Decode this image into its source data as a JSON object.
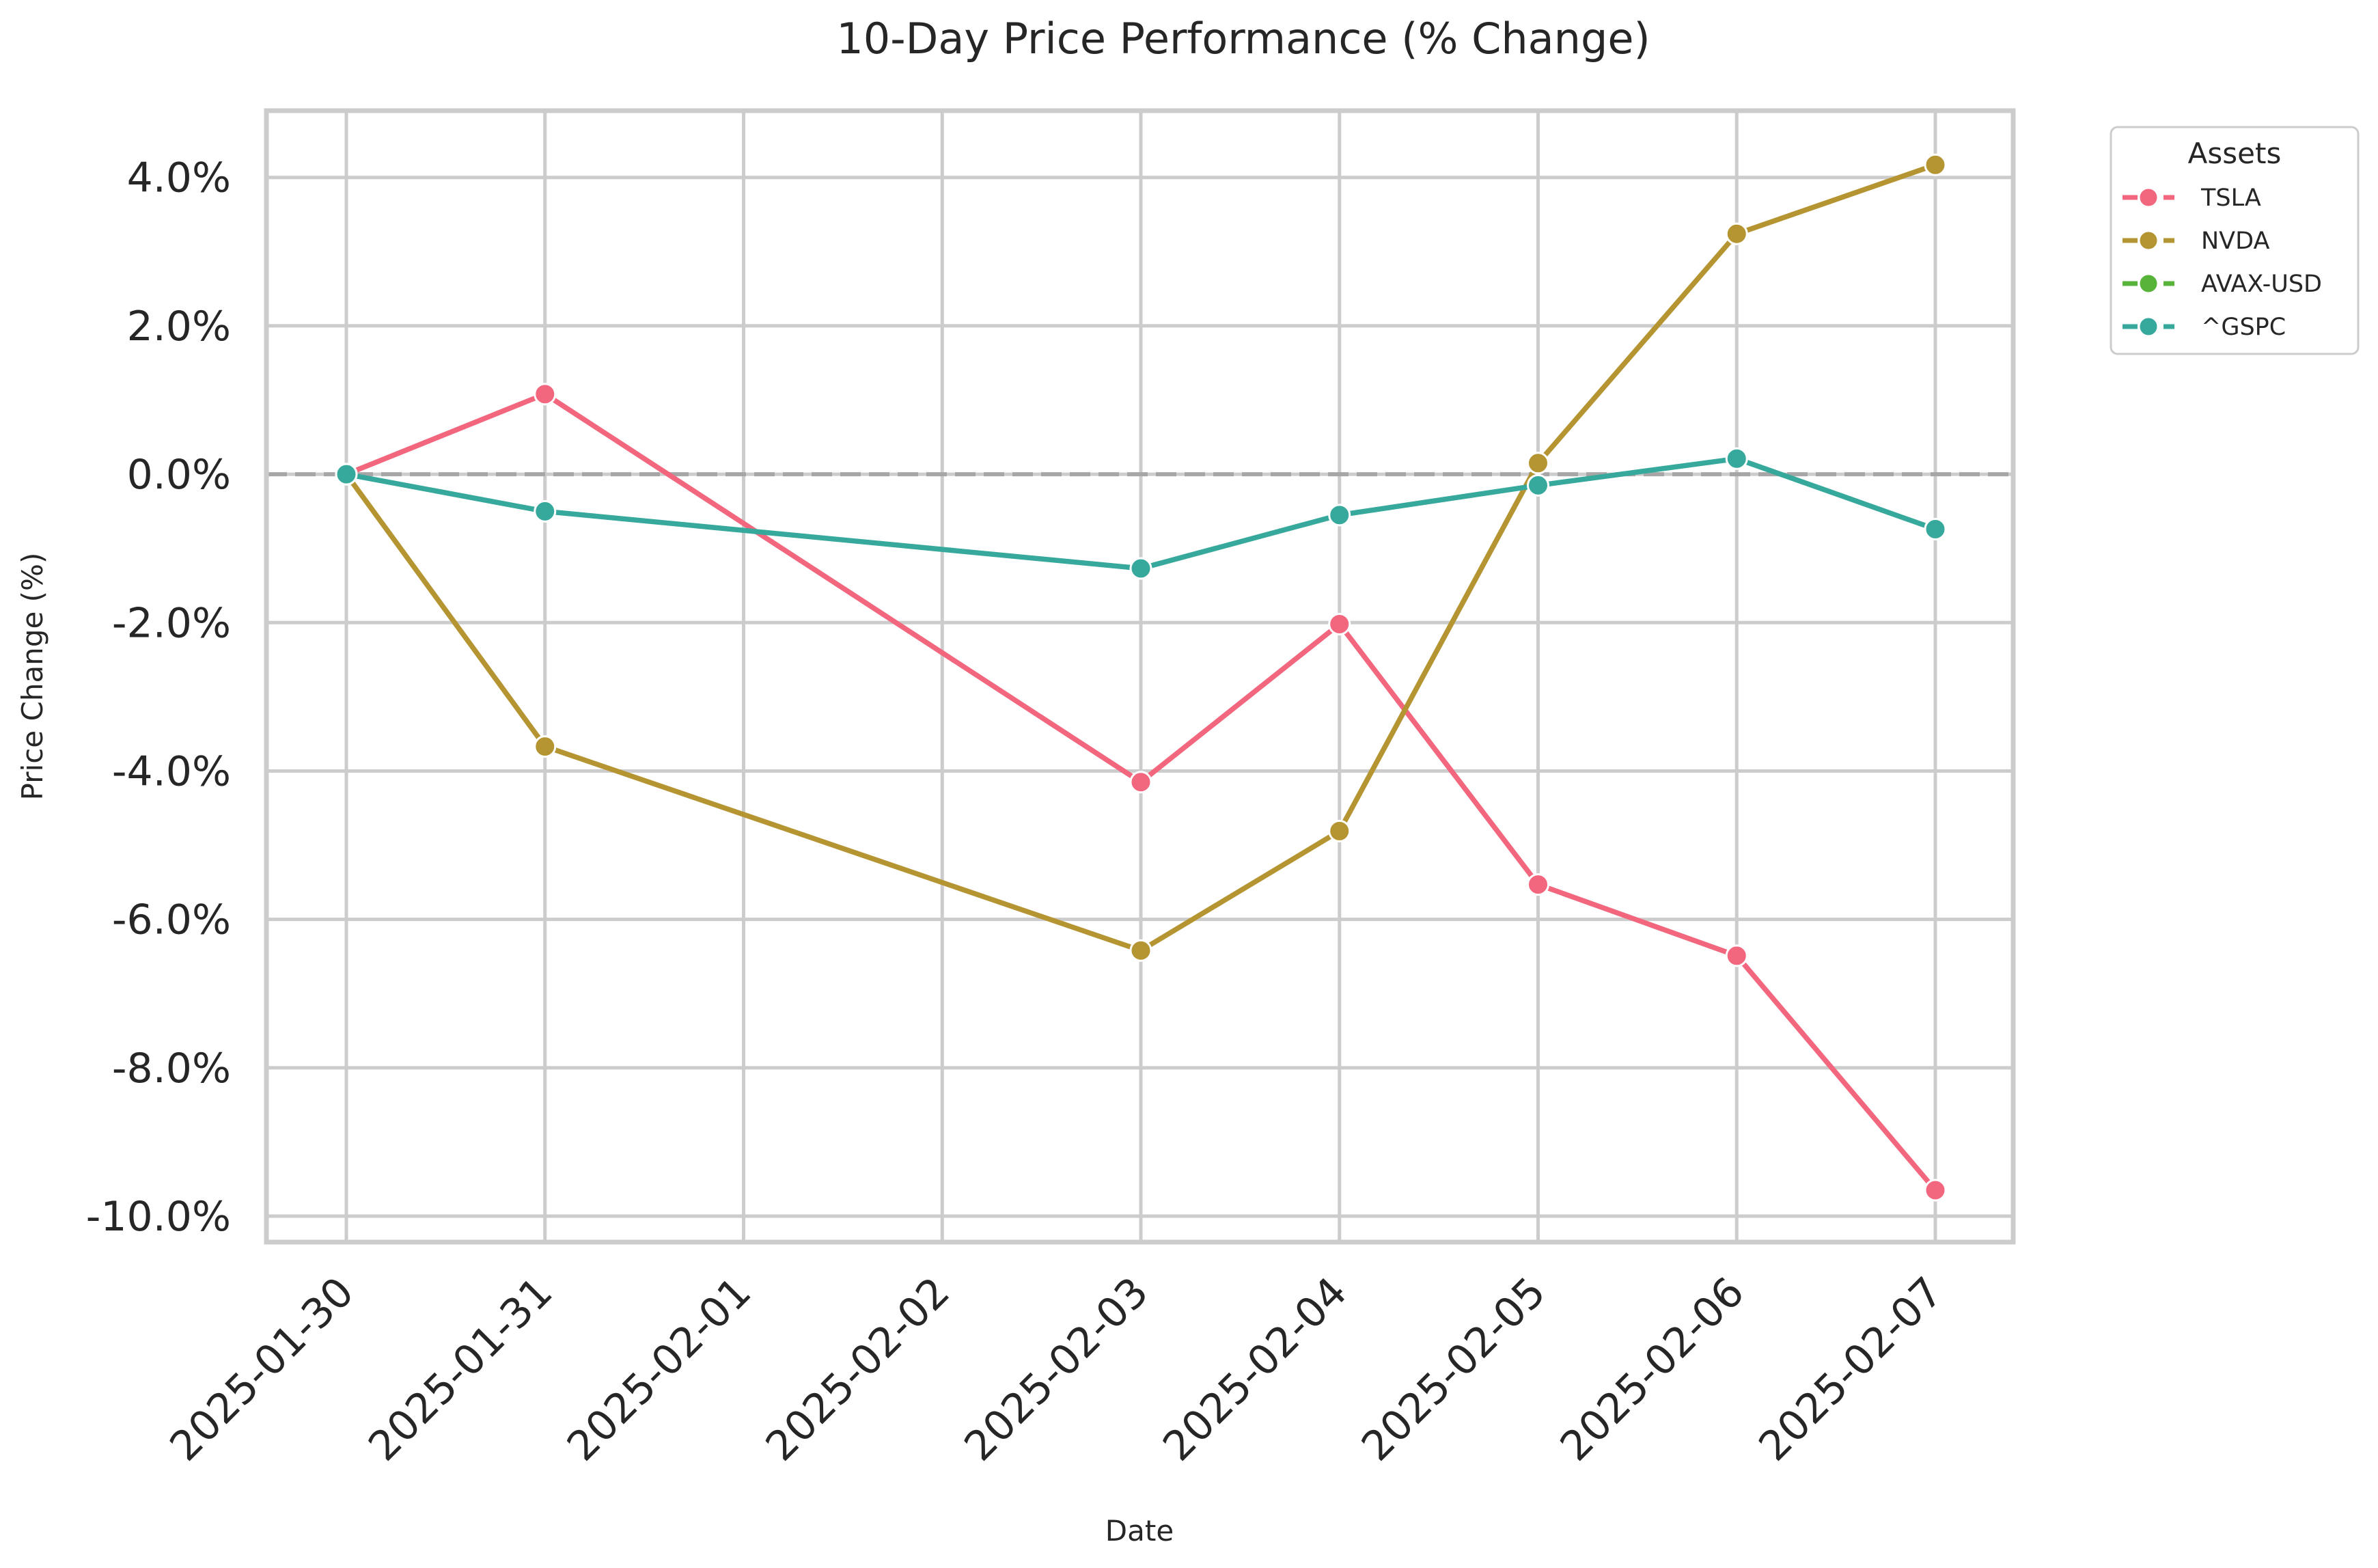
{
  "chart_data": {
    "type": "line",
    "title": "10-Day Price Performance (% Change)",
    "xlabel": "Date",
    "ylabel": "Price Change (%)",
    "x_categories": [
      "2025-01-30",
      "2025-01-31",
      "2025-02-01",
      "2025-02-02",
      "2025-02-03",
      "2025-02-04",
      "2025-02-05",
      "2025-02-06",
      "2025-02-07"
    ],
    "ylim": [
      -10.35,
      4.9
    ],
    "yticks": [
      4.0,
      2.0,
      0.0,
      -2.0,
      -4.0,
      -6.0,
      -8.0,
      -10.0
    ],
    "ytick_labels": [
      "4.0%",
      "2.0%",
      "0.0%",
      "-2.0%",
      "-4.0%",
      "-6.0%",
      "-8.0%",
      "-10.0%"
    ],
    "grid": true,
    "reference_line": 0.0,
    "legend": {
      "title": "Assets",
      "position": "upper-right-outside"
    },
    "series": [
      {
        "name": "TSLA",
        "color": "#f2677e",
        "points": [
          {
            "x": "2025-01-30",
            "y": 0.0
          },
          {
            "x": "2025-01-31",
            "y": 1.08
          },
          {
            "x": "2025-02-03",
            "y": -4.15
          },
          {
            "x": "2025-02-04",
            "y": -2.02
          },
          {
            "x": "2025-02-05",
            "y": -5.53
          },
          {
            "x": "2025-02-06",
            "y": -6.49
          },
          {
            "x": "2025-02-07",
            "y": -9.65
          }
        ]
      },
      {
        "name": "NVDA",
        "color": "#b59432",
        "points": [
          {
            "x": "2025-01-30",
            "y": 0.0
          },
          {
            "x": "2025-01-31",
            "y": -3.67
          },
          {
            "x": "2025-02-03",
            "y": -6.42
          },
          {
            "x": "2025-02-04",
            "y": -4.81
          },
          {
            "x": "2025-02-05",
            "y": 0.15
          },
          {
            "x": "2025-02-06",
            "y": 3.24
          },
          {
            "x": "2025-02-07",
            "y": 4.17
          }
        ]
      },
      {
        "name": "AVAX-USD",
        "color": "#58b33a",
        "points": []
      },
      {
        "name": "^GSPC",
        "color": "#36a99c",
        "points": [
          {
            "x": "2025-01-30",
            "y": 0.0
          },
          {
            "x": "2025-01-31",
            "y": -0.5
          },
          {
            "x": "2025-02-03",
            "y": -1.27
          },
          {
            "x": "2025-02-04",
            "y": -0.55
          },
          {
            "x": "2025-02-05",
            "y": -0.15
          },
          {
            "x": "2025-02-06",
            "y": 0.21
          },
          {
            "x": "2025-02-07",
            "y": -0.74
          }
        ]
      }
    ]
  }
}
